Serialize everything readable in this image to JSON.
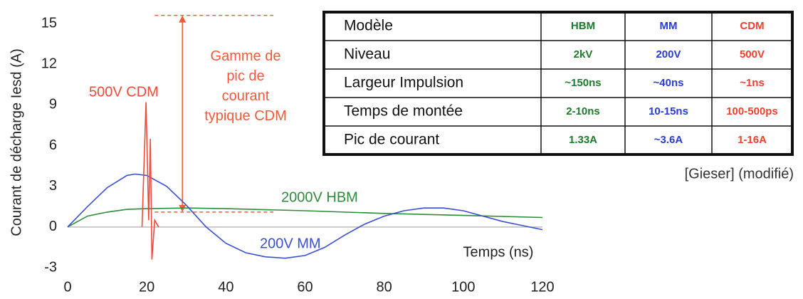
{
  "chart_data": {
    "type": "line",
    "ylabel": "Courant de décharge  Iesd (A)",
    "xlabel": "Temps (ns)",
    "xlim": [
      0,
      120
    ],
    "xticks": [
      0,
      20,
      40,
      60,
      80,
      100,
      120
    ],
    "ylim": [
      -3,
      15
    ],
    "yticks": [
      -3,
      0,
      3,
      6,
      9,
      12,
      15
    ],
    "series": [
      {
        "name": "2000V HBM",
        "color": "#2e8b3a",
        "x": [
          0,
          5,
          10,
          15,
          20,
          30,
          40,
          60,
          80,
          100,
          120
        ],
        "values": [
          0,
          0.8,
          1.1,
          1.3,
          1.35,
          1.4,
          1.35,
          1.2,
          1.0,
          0.85,
          0.7
        ]
      },
      {
        "name": "200V MM",
        "color": "#3a4fd0",
        "x": [
          0,
          5,
          10,
          15,
          17,
          20,
          25,
          30,
          35,
          40,
          45,
          50,
          55,
          60,
          65,
          70,
          75,
          80,
          85,
          90,
          95,
          100,
          105,
          110,
          115,
          120
        ],
        "values": [
          0,
          1.5,
          2.9,
          3.8,
          3.9,
          3.8,
          3.0,
          1.6,
          0,
          -1.2,
          -1.9,
          -2.2,
          -2.3,
          -2.1,
          -1.5,
          -0.6,
          0.2,
          0.8,
          1.2,
          1.4,
          1.4,
          1.2,
          0.8,
          0.4,
          0.1,
          -0.2
        ]
      },
      {
        "name": "500V CDM",
        "color": "#f04a3a",
        "x": [
          18.8,
          19.8,
          20.5,
          20.9,
          21.3,
          22,
          23
        ],
        "values": [
          0,
          9.2,
          0.5,
          6.5,
          -2.4,
          0.5,
          0
        ]
      }
    ],
    "annotation": {
      "text": "Gamme de pic de courant typique CDM",
      "low": 1.1,
      "high": 15.6,
      "x_from": 22,
      "x_to": 52,
      "arrow_x": 29,
      "color": "#f05a3a"
    },
    "source": "[Gieser] (modifié)",
    "table": {
      "header": [
        "Modèle",
        "HBM",
        "MM",
        "CDM"
      ],
      "rows": [
        [
          "Niveau",
          "2kV",
          "200V",
          "500V"
        ],
        [
          "Largeur Impulsion",
          "~150ns",
          "~40ns",
          "~1ns"
        ],
        [
          "Temps de montée",
          "2-10ns",
          "10-15ns",
          "100-500ps"
        ],
        [
          "Pic de courant",
          "1.33A",
          "~3.6A",
          "1-16A"
        ]
      ],
      "column_colors": [
        "#111111",
        "#1e7a2c",
        "#2a3bd0",
        "#f04030"
      ]
    }
  }
}
